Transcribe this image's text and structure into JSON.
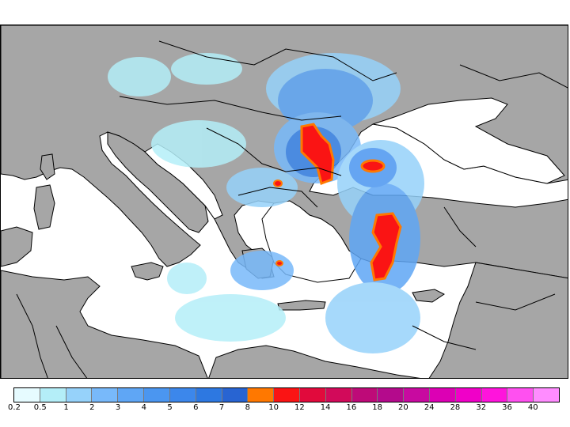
{
  "map": {
    "land_color": "#a6a6a6",
    "sea_color": "#ffffff",
    "border_color": "#000000"
  },
  "legend": {
    "labels": [
      "0.2",
      "0.5",
      "1",
      "2",
      "3",
      "4",
      "5",
      "6",
      "7",
      "8",
      "10",
      "12",
      "14",
      "16",
      "18",
      "20",
      "24",
      "28",
      "32",
      "36",
      "40"
    ],
    "colors": [
      "#e6fbff",
      "#b4eef8",
      "#96d2fa",
      "#78b9fa",
      "#5fa6f5",
      "#4b96f0",
      "#3c87eb",
      "#2d78e1",
      "#2864d2",
      "#ff7800",
      "#fa1414",
      "#e10a3c",
      "#d20a5a",
      "#be0a78",
      "#b40a8c",
      "#c80aa0",
      "#dc00b4",
      "#f000c8",
      "#ff14dc",
      "#ff50f0",
      "#ff8cff"
    ]
  }
}
